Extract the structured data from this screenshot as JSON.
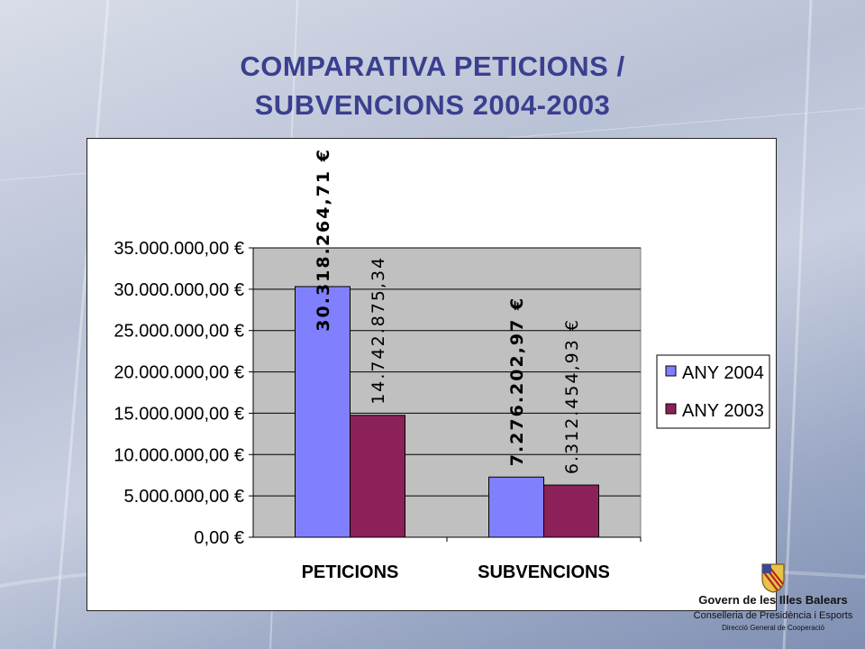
{
  "slide": {
    "title_line1": "COMPARATIVA PETICIONS /",
    "title_line2": "SUBVENCIONS 2004-2003"
  },
  "colors": {
    "title": "#3a3f8f",
    "series_2004": "#8080ff",
    "series_2003": "#8b2158",
    "plot_bg": "#c0c0c0"
  },
  "chart_data": {
    "type": "bar",
    "categories": [
      "PETICIONS",
      "SUBVENCIONS"
    ],
    "series": [
      {
        "name": "ANY 2004",
        "values": [
          30318264.71,
          7276202.97
        ],
        "labels": [
          "30.318.264,71 €",
          "7.276.202,97 €"
        ]
      },
      {
        "name": "ANY 2003",
        "values": [
          14742875.34,
          6312454.93
        ],
        "labels": [
          "14.742.875,34",
          "6.312.454,93 €"
        ]
      }
    ],
    "ylim": [
      0,
      35000000
    ],
    "yticks": [
      "0,00 €",
      "5.000.000,00 €",
      "10.000.000,00 €",
      "15.000.000,00 €",
      "20.000.000,00 €",
      "25.000.000,00 €",
      "30.000.000,00 €",
      "35.000.000,00 €"
    ],
    "grid": true,
    "legend": "right"
  },
  "footer": {
    "gov_name": "Govern de les Illes Balears",
    "department": "Conselleria de Presidència i Esports",
    "division": "Direcció General de Cooperació"
  }
}
